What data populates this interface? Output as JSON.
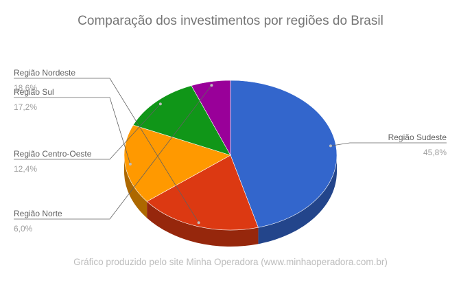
{
  "chart_data": {
    "type": "pie",
    "title": "Comparação dos investimentos por regiões do Brasil",
    "slices": [
      {
        "label": "Região Sudeste",
        "value": 45.8,
        "value_label": "45,8%",
        "color": "#3366cc"
      },
      {
        "label": "Região Nordeste",
        "value": 18.6,
        "value_label": "18,6%",
        "color": "#dc3912"
      },
      {
        "label": "Região Sul",
        "value": 17.2,
        "value_label": "17,2%",
        "color": "#ff9900"
      },
      {
        "label": "Região Centro-Oeste",
        "value": 12.4,
        "value_label": "12,4%",
        "color": "#109618"
      },
      {
        "label": "Região Norte",
        "value": 6.0,
        "value_label": "6,0%",
        "color": "#990099"
      }
    ],
    "legend": "labeled",
    "style": "3d"
  },
  "footer": {
    "source": "Gráfico produzido pelo site Minha Operadora (www.minhaoperadora.com.br)"
  }
}
